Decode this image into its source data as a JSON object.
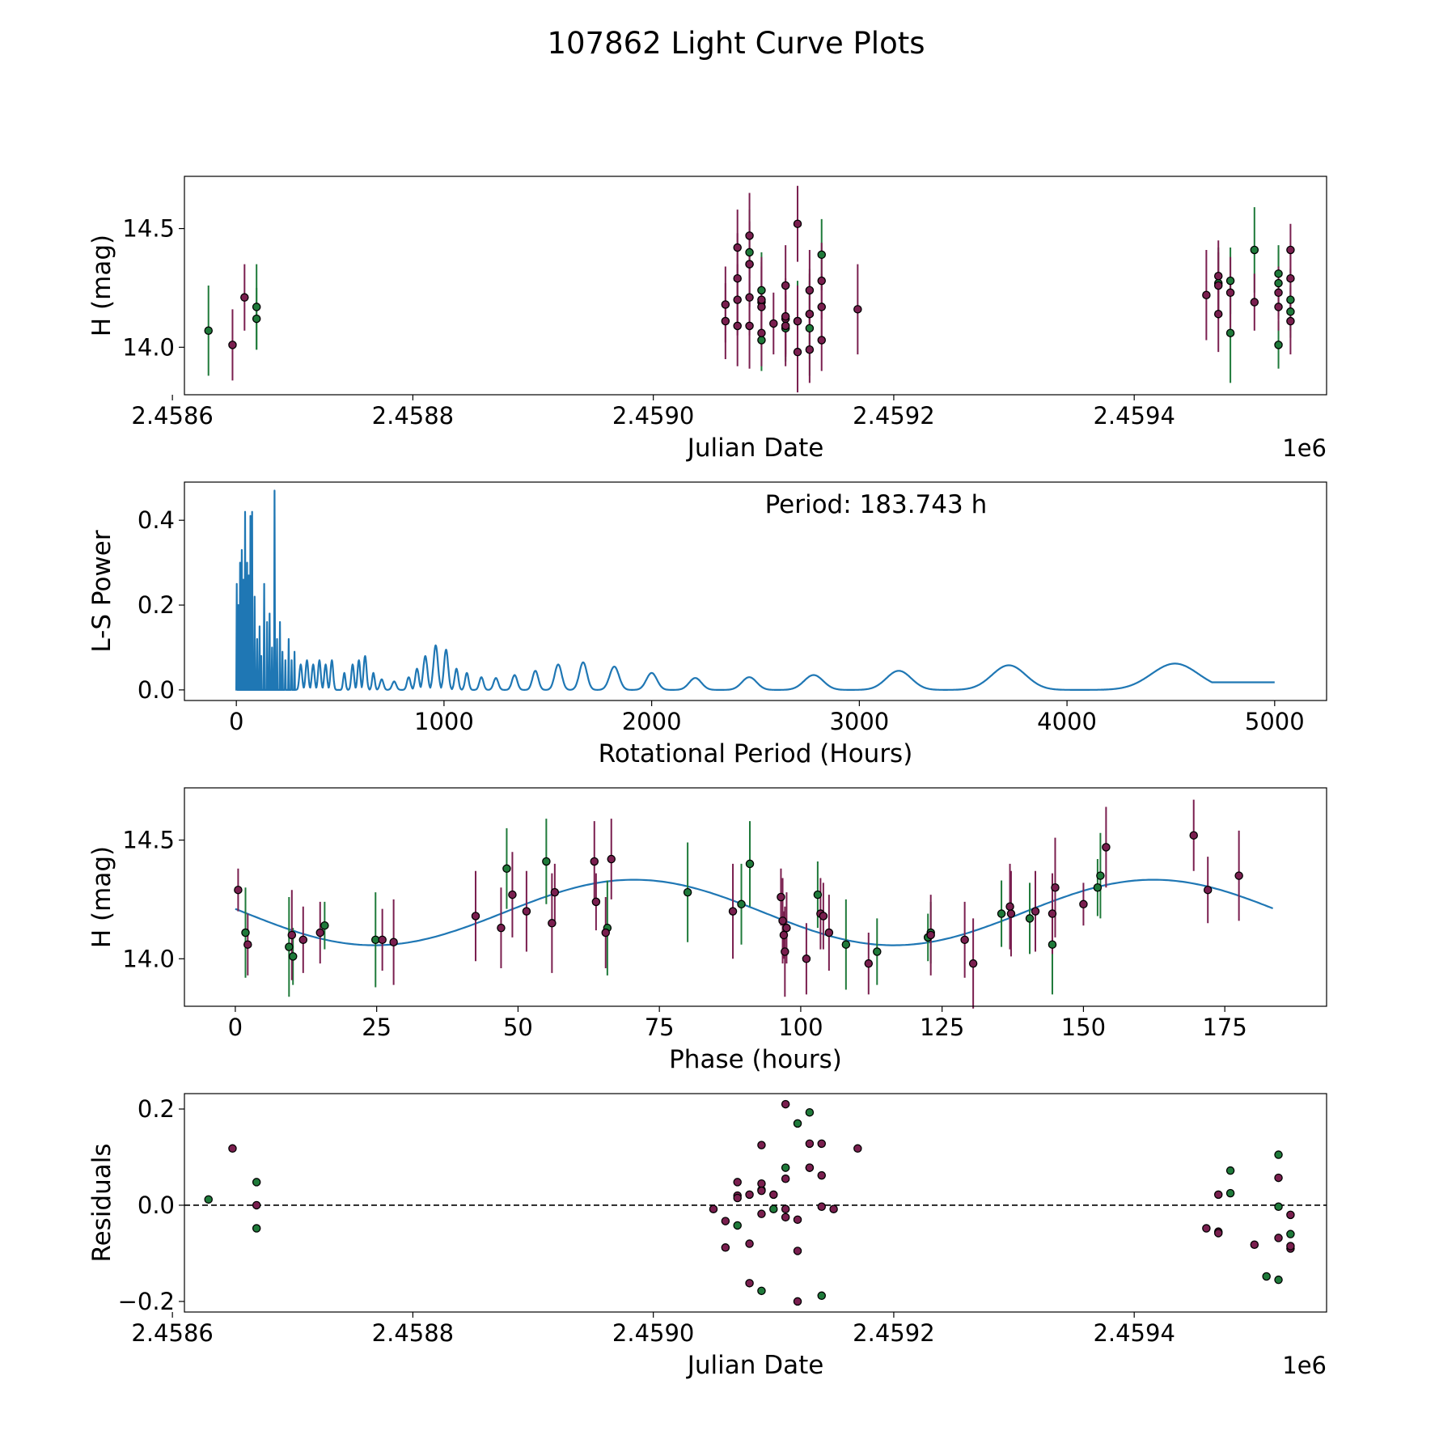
{
  "figure": {
    "title": "107862 Light Curve Plots"
  },
  "colors": {
    "green": "#1f7a3a",
    "magenta": "#7a1f4f",
    "line": "#1f77b4",
    "edge": "#000000"
  },
  "chart_data": [
    {
      "id": "lc",
      "type": "scatter",
      "xlabel": "Julian Date",
      "ylabel": "H (mag)",
      "offset_label": "1e6",
      "xlim": [
        2.45861,
        2.45956
      ],
      "ylim": [
        13.8,
        14.72
      ],
      "xticks": [
        2.4586,
        2.4588,
        2.459,
        2.4592,
        2.4594
      ],
      "xtick_labels": [
        "2.4586",
        "2.4588",
        "2.4590",
        "2.4592",
        "2.4594"
      ],
      "yticks": [
        14.0,
        14.5
      ],
      "ytick_labels": [
        "14.0",
        "14.5"
      ],
      "series": [
        {
          "name": "green",
          "x": [
            2.45863,
            2.45867,
            2.45867,
            2.45908,
            2.45909,
            2.45909,
            2.45911,
            2.45912,
            2.45913,
            2.45914,
            2.45913,
            2.45948,
            2.45948,
            2.4595,
            2.45952,
            2.45952,
            2.45952,
            2.45953,
            2.45953,
            2.45947
          ],
          "y": [
            14.07,
            14.17,
            14.12,
            14.4,
            14.03,
            14.24,
            14.08,
            14.11,
            14.14,
            14.39,
            14.08,
            14.28,
            14.06,
            14.41,
            14.01,
            14.27,
            14.31,
            14.15,
            14.2,
            14.27
          ],
          "err": [
            0.19,
            0.18,
            0.13,
            0.18,
            0.13,
            0.16,
            0.14,
            0.17,
            0.19,
            0.15,
            0.2,
            0.14,
            0.21,
            0.18,
            0.1,
            0.14,
            0.12,
            0.11,
            0.13,
            0.15
          ]
        },
        {
          "name": "magenta",
          "x": [
            2.45865,
            2.45866,
            2.45906,
            2.45906,
            2.45907,
            2.45907,
            2.45907,
            2.45907,
            2.45908,
            2.45908,
            2.45908,
            2.45908,
            2.45908,
            2.45909,
            2.45909,
            2.45909,
            2.45909,
            2.4591,
            2.45911,
            2.45911,
            2.45911,
            2.45911,
            2.45912,
            2.45912,
            2.45912,
            2.45913,
            2.45913,
            2.45913,
            2.45914,
            2.45914,
            2.45914,
            2.45917,
            2.45946,
            2.45947,
            2.45947,
            2.45947,
            2.45948,
            2.4595,
            2.45952,
            2.45952,
            2.45953,
            2.45953,
            2.45953
          ],
          "y": [
            14.01,
            14.21,
            14.11,
            14.18,
            14.42,
            14.2,
            14.29,
            14.09,
            14.35,
            14.47,
            14.09,
            14.21,
            14.35,
            14.19,
            14.17,
            14.06,
            14.2,
            14.1,
            14.12,
            14.09,
            14.26,
            14.13,
            14.52,
            14.11,
            13.98,
            13.99,
            14.24,
            14.14,
            14.03,
            14.17,
            14.28,
            14.16,
            14.22,
            14.26,
            14.14,
            14.3,
            14.23,
            14.19,
            14.17,
            14.23,
            14.11,
            14.41,
            14.29
          ],
          "err": [
            0.15,
            0.14,
            0.16,
            0.16,
            0.16,
            0.15,
            0.19,
            0.17,
            0.18,
            0.18,
            0.18,
            0.16,
            0.18,
            0.17,
            0.17,
            0.14,
            0.18,
            0.13,
            0.16,
            0.17,
            0.17,
            0.16,
            0.16,
            0.15,
            0.17,
            0.14,
            0.17,
            0.17,
            0.13,
            0.14,
            0.16,
            0.19,
            0.19,
            0.14,
            0.16,
            0.15,
            0.15,
            0.12,
            0.1,
            0.11,
            0.14,
            0.11,
            0.13
          ]
        }
      ]
    },
    {
      "id": "ls",
      "type": "line",
      "xlabel": "Rotational Period (Hours)",
      "ylabel": "L-S Power",
      "annotation": "Period: 183.743 h",
      "xlim": [
        -250,
        5250
      ],
      "ylim": [
        -0.025,
        0.49
      ],
      "xticks": [
        0,
        1000,
        2000,
        3000,
        4000,
        5000
      ],
      "xtick_labels": [
        "0",
        "1000",
        "2000",
        "3000",
        "4000",
        "5000"
      ],
      "yticks": [
        0.0,
        0.2,
        0.4
      ],
      "ytick_labels": [
        "0.0",
        "0.2",
        "0.4"
      ],
      "spikes": [
        [
          2,
          0.25
        ],
        [
          10,
          0.2
        ],
        [
          18,
          0.3
        ],
        [
          26,
          0.33
        ],
        [
          34,
          0.26
        ],
        [
          42,
          0.42
        ],
        [
          52,
          0.3
        ],
        [
          60,
          0.27
        ],
        [
          68,
          0.41
        ],
        [
          76,
          0.42
        ],
        [
          88,
          0.22
        ],
        [
          100,
          0.12
        ],
        [
          112,
          0.15
        ],
        [
          120,
          0.08
        ],
        [
          134,
          0.25
        ],
        [
          148,
          0.16
        ],
        [
          160,
          0.18
        ],
        [
          172,
          0.1
        ],
        [
          184,
          0.47
        ],
        [
          196,
          0.12
        ],
        [
          210,
          0.16
        ],
        [
          222,
          0.09
        ],
        [
          236,
          0.07
        ],
        [
          252,
          0.12
        ],
        [
          266,
          0.07
        ],
        [
          280,
          0.09
        ]
      ],
      "bumps": [
        [
          310,
          0.06,
          9
        ],
        [
          340,
          0.07,
          9
        ],
        [
          370,
          0.06,
          9
        ],
        [
          400,
          0.07,
          9
        ],
        [
          430,
          0.06,
          9
        ],
        [
          460,
          0.07,
          9
        ],
        [
          520,
          0.04,
          8
        ],
        [
          560,
          0.06,
          9
        ],
        [
          590,
          0.07,
          9
        ],
        [
          620,
          0.08,
          10
        ],
        [
          660,
          0.04,
          9
        ],
        [
          700,
          0.025,
          12
        ],
        [
          760,
          0.02,
          14
        ],
        [
          830,
          0.03,
          12
        ],
        [
          870,
          0.05,
          12
        ],
        [
          910,
          0.08,
          14
        ],
        [
          960,
          0.105,
          15
        ],
        [
          1010,
          0.095,
          14
        ],
        [
          1060,
          0.05,
          12
        ],
        [
          1110,
          0.04,
          12
        ],
        [
          1180,
          0.03,
          14
        ],
        [
          1250,
          0.028,
          16
        ],
        [
          1340,
          0.035,
          18
        ],
        [
          1440,
          0.045,
          20
        ],
        [
          1550,
          0.06,
          24
        ],
        [
          1670,
          0.065,
          26
        ],
        [
          1820,
          0.055,
          32
        ],
        [
          2000,
          0.04,
          36
        ],
        [
          2210,
          0.028,
          42
        ],
        [
          2470,
          0.03,
          50
        ],
        [
          2780,
          0.035,
          65
        ],
        [
          3190,
          0.045,
          85
        ],
        [
          3720,
          0.058,
          115
        ],
        [
          4520,
          0.062,
          160
        ]
      ],
      "baseline_end": 0.018
    },
    {
      "id": "phase",
      "type": "scatter",
      "xlabel": "Phase (hours)",
      "ylabel": "H (mag)",
      "xlim": [
        -9,
        193
      ],
      "ylim": [
        13.8,
        14.72
      ],
      "xticks": [
        0,
        25,
        50,
        75,
        100,
        125,
        150,
        175
      ],
      "xtick_labels": [
        "0",
        "25",
        "50",
        "75",
        "100",
        "125",
        "150",
        "175"
      ],
      "yticks": [
        14.0,
        14.5
      ],
      "ytick_labels": [
        "14.0",
        "14.5"
      ],
      "model": {
        "mean": 14.195,
        "amplitude": 0.138,
        "period": 91.87,
        "phase_of_max": 70.5,
        "x_end": 183.7
      },
      "series": [
        {
          "name": "green",
          "x": [
            1.8,
            9.5,
            10.2,
            15.8,
            24.8,
            48.0,
            55.0,
            65.8,
            80.0,
            89.5,
            91.0,
            103.0,
            108.0,
            113.5,
            122.5,
            123.0,
            135.5,
            140.5,
            144.5,
            152.5,
            153.0
          ],
          "y": [
            14.11,
            14.05,
            14.01,
            14.14,
            14.08,
            14.38,
            14.41,
            14.13,
            14.28,
            14.23,
            14.4,
            14.27,
            14.06,
            14.03,
            14.09,
            14.11,
            14.19,
            14.17,
            14.06,
            14.3,
            14.35
          ],
          "err": [
            0.19,
            0.21,
            0.12,
            0.1,
            0.2,
            0.17,
            0.18,
            0.2,
            0.21,
            0.17,
            0.18,
            0.14,
            0.19,
            0.14,
            0.1,
            0.13,
            0.14,
            0.15,
            0.21,
            0.12,
            0.18
          ]
        },
        {
          "name": "magenta",
          "x": [
            0.5,
            2.2,
            10.0,
            12.0,
            15.0,
            26.0,
            28.0,
            42.5,
            47.0,
            49.0,
            51.5,
            56.0,
            56.5,
            63.5,
            63.8,
            65.5,
            66.5,
            88.0,
            96.5,
            96.8,
            97.0,
            97.2,
            97.5,
            101.0,
            103.5,
            104.0,
            105.0,
            112.0,
            123.0,
            129.0,
            130.5,
            137.0,
            137.2,
            141.5,
            144.5,
            145.0,
            150.0,
            154.0,
            169.5,
            172.0,
            177.5
          ],
          "y": [
            14.29,
            14.06,
            14.1,
            14.08,
            14.11,
            14.08,
            14.07,
            14.18,
            14.13,
            14.27,
            14.2,
            14.15,
            14.28,
            14.41,
            14.24,
            14.11,
            14.42,
            14.2,
            14.26,
            14.16,
            14.1,
            14.03,
            14.13,
            14.0,
            14.19,
            14.18,
            14.11,
            13.98,
            14.1,
            14.08,
            13.98,
            14.22,
            14.19,
            14.2,
            14.19,
            14.3,
            14.23,
            14.47,
            14.52,
            14.29,
            14.35
          ],
          "err": [
            0.09,
            0.13,
            0.19,
            0.14,
            0.13,
            0.13,
            0.18,
            0.19,
            0.17,
            0.18,
            0.17,
            0.21,
            0.12,
            0.17,
            0.12,
            0.15,
            0.17,
            0.2,
            0.12,
            0.18,
            0.1,
            0.19,
            0.15,
            0.15,
            0.15,
            0.14,
            0.16,
            0.13,
            0.17,
            0.16,
            0.19,
            0.18,
            0.18,
            0.17,
            0.17,
            0.21,
            0.09,
            0.17,
            0.15,
            0.14,
            0.19
          ]
        }
      ]
    },
    {
      "id": "resid",
      "type": "scatter",
      "xlabel": "Julian Date",
      "ylabel": "Residuals",
      "offset_label": "1e6",
      "xlim": [
        2.45861,
        2.45956
      ],
      "ylim": [
        -0.222,
        0.232
      ],
      "xticks": [
        2.4586,
        2.4588,
        2.459,
        2.4592,
        2.4594
      ],
      "xtick_labels": [
        "2.4586",
        "2.4588",
        "2.4590",
        "2.4592",
        "2.4594"
      ],
      "yticks": [
        -0.2,
        0.0,
        0.2
      ],
      "ytick_labels": [
        "−0.2",
        "0.0",
        "0.2"
      ],
      "zero_line": 0.0,
      "series": [
        {
          "name": "green",
          "x": [
            2.45863,
            2.45867,
            2.45867,
            2.45907,
            2.45909,
            2.45909,
            2.4591,
            2.45911,
            2.45912,
            2.45913,
            2.45914,
            2.45948,
            2.45948,
            2.45951,
            2.45952,
            2.45952,
            2.45953,
            2.45952
          ],
          "y": [
            0.012,
            0.048,
            -0.048,
            -0.042,
            -0.178,
            0.032,
            -0.008,
            0.078,
            0.17,
            0.193,
            -0.188,
            0.072,
            0.025,
            -0.148,
            0.105,
            -0.155,
            -0.06,
            -0.003
          ],
          "err": []
        },
        {
          "name": "magenta",
          "x": [
            2.45865,
            2.45867,
            2.45905,
            2.45906,
            2.45906,
            2.45907,
            2.45907,
            2.45907,
            2.45908,
            2.45908,
            2.45908,
            2.45909,
            2.45909,
            2.45909,
            2.45909,
            2.4591,
            2.45911,
            2.45911,
            2.45911,
            2.45911,
            2.45912,
            2.45912,
            2.45912,
            2.45913,
            2.45913,
            2.45913,
            2.45914,
            2.45914,
            2.45914,
            2.45915,
            2.45917,
            2.45946,
            2.45947,
            2.45947,
            2.45947,
            2.4595,
            2.45952,
            2.45952,
            2.45953,
            2.45953,
            2.45953
          ],
          "y": [
            0.118,
            0.0,
            -0.008,
            -0.033,
            -0.088,
            0.048,
            0.02,
            0.015,
            -0.08,
            -0.162,
            0.022,
            0.045,
            -0.018,
            0.125,
            0.03,
            0.022,
            0.21,
            -0.008,
            -0.025,
            0.055,
            -0.03,
            -0.095,
            -0.2,
            0.128,
            0.078,
            0.078,
            0.062,
            0.128,
            -0.003,
            -0.008,
            0.118,
            -0.048,
            -0.055,
            -0.058,
            0.022,
            -0.082,
            0.057,
            -0.068,
            -0.02,
            -0.09,
            -0.085
          ],
          "err": []
        }
      ]
    }
  ]
}
